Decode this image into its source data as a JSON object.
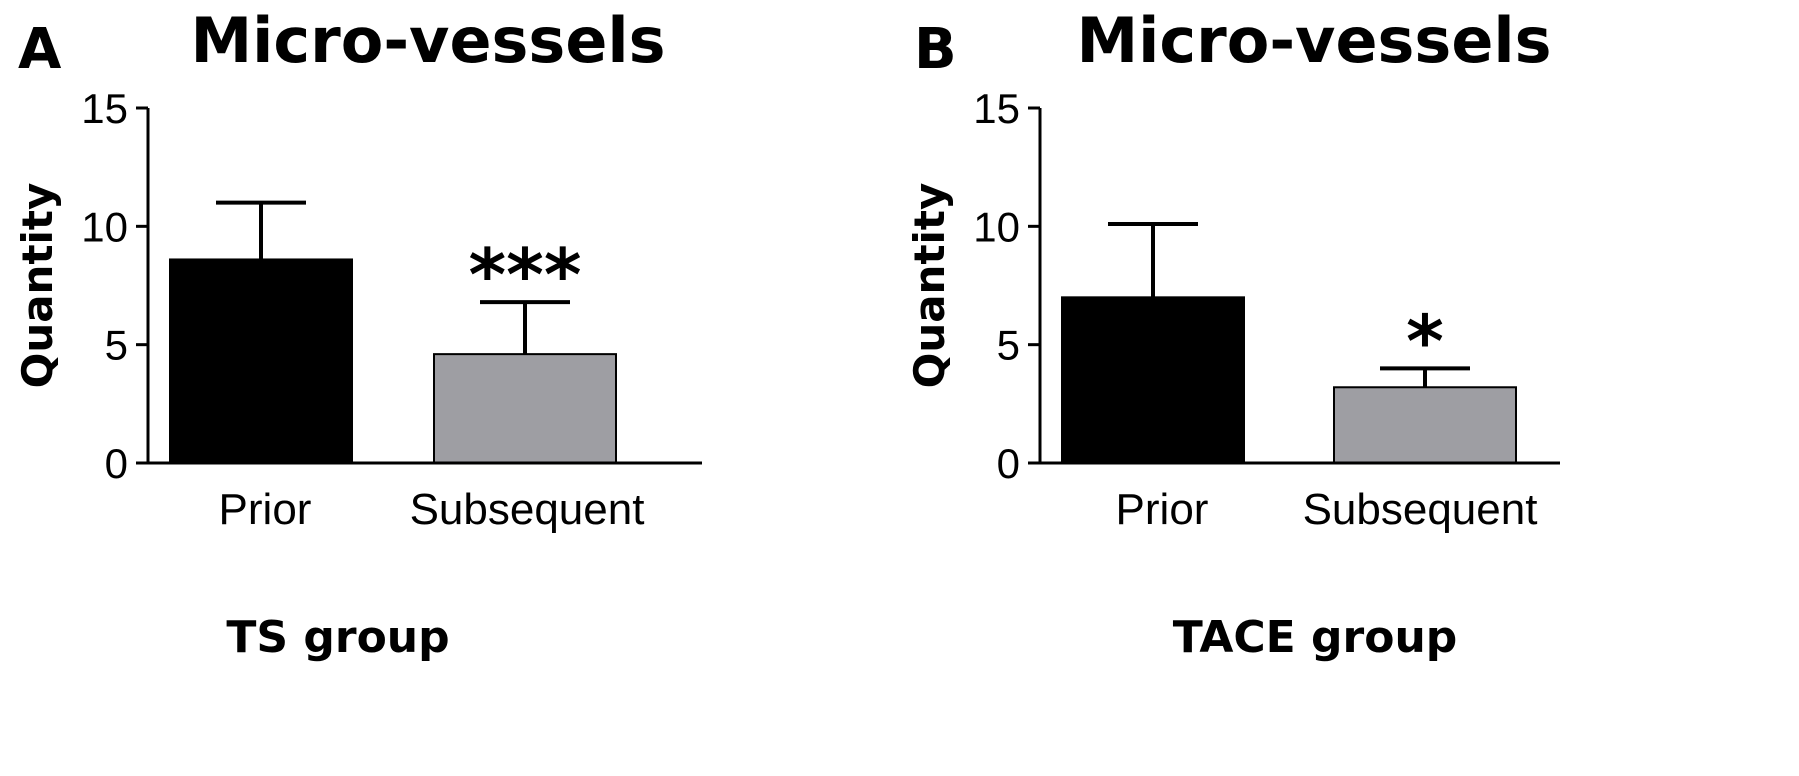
{
  "chart_data": [
    {
      "type": "bar",
      "panel": "A",
      "title": "Micro-vessels",
      "xlabel": "TS group",
      "ylabel": "Quantity",
      "ylim": [
        0,
        15
      ],
      "yticks": [
        "0",
        "5",
        "10",
        "15"
      ],
      "categories": [
        "Prior",
        "Subsequent"
      ],
      "values": [
        8.6,
        4.6
      ],
      "errors": [
        2.4,
        2.2
      ],
      "colors": [
        "#000000",
        "#9e9ea3"
      ],
      "annotations": [
        "",
        "***"
      ],
      "grid": false
    },
    {
      "type": "bar",
      "panel": "B",
      "title": "Micro-vessels",
      "xlabel": "TACE group",
      "ylabel": "Quantity",
      "ylim": [
        0,
        15
      ],
      "yticks": [
        "0",
        "5",
        "10",
        "15"
      ],
      "categories": [
        "Prior",
        "Subsequent"
      ],
      "values": [
        7.0,
        3.2
      ],
      "errors": [
        3.1,
        0.8
      ],
      "colors": [
        "#000000",
        "#9e9ea3"
      ],
      "annotations": [
        "",
        "*"
      ],
      "grid": false
    }
  ]
}
